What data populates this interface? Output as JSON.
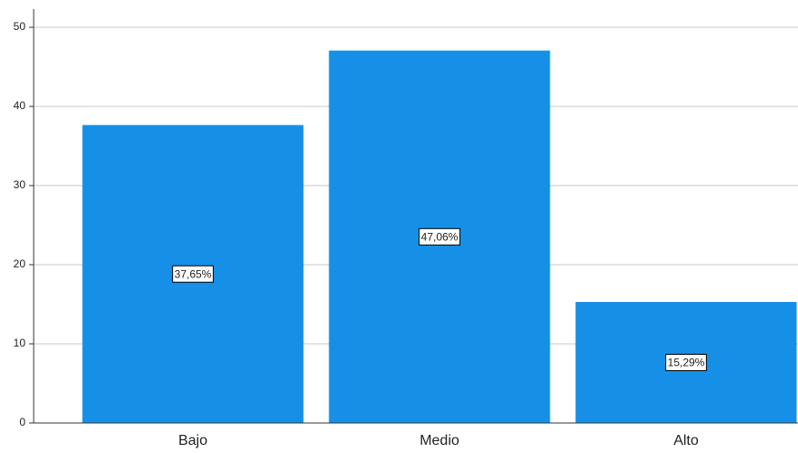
{
  "chart_data": {
    "type": "bar",
    "categories": [
      "Bajo",
      "Medio",
      "Alto"
    ],
    "values": [
      37.65,
      47.06,
      15.29
    ],
    "value_labels": [
      "37,65%",
      "47,06%",
      "15,29%"
    ],
    "color": "#1590e6",
    "ylim": [
      0,
      52.3
    ],
    "yticks": [
      0,
      10,
      20,
      30,
      40,
      50
    ],
    "grid": true
  }
}
